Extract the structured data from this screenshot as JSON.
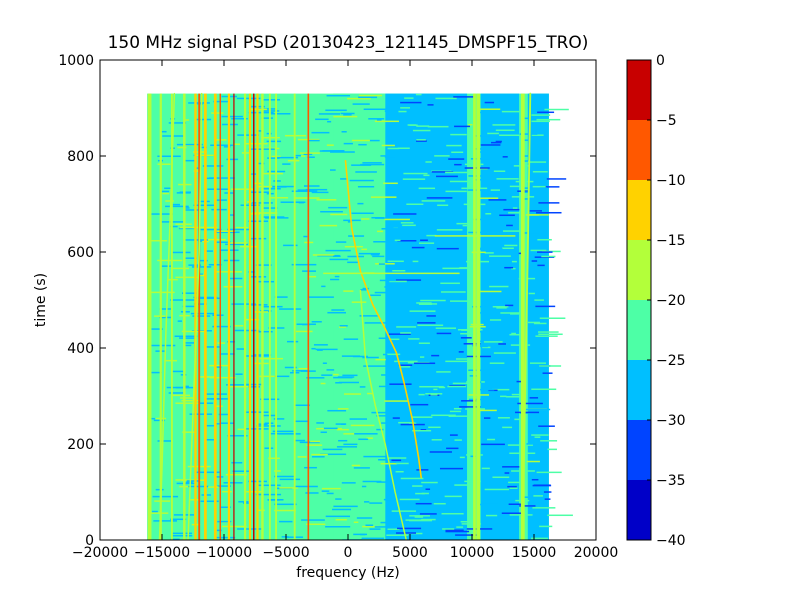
{
  "chart_data": {
    "type": "heatmap",
    "title": "150 MHz signal PSD (20130423_121145_DMSPF15_TRO)",
    "xlabel": "frequency (Hz)",
    "ylabel": "time (s)",
    "xlim": [
      -20000,
      20000
    ],
    "ylim": [
      0,
      1000
    ],
    "x_ticks": [
      -20000,
      -15000,
      -10000,
      -5000,
      0,
      5000,
      10000,
      15000,
      20000
    ],
    "y_ticks": [
      0,
      200,
      400,
      600,
      800,
      1000
    ],
    "data_extent": {
      "freq_min_hz": -16200,
      "freq_max_hz": 16200,
      "time_min_s": 0,
      "time_max_s": 930
    },
    "background_level_db": -22.5,
    "colorbar": {
      "levels": [
        -40,
        -35,
        -30,
        -25,
        -20,
        -15,
        -10,
        -5,
        0
      ],
      "colors": [
        "#0000c8",
        "#0044ff",
        "#00bfff",
        "#4dffa6",
        "#b3ff3a",
        "#ffd200",
        "#ff5800",
        "#c80000"
      ]
    },
    "regions": [
      {
        "f_min_hz": 3000,
        "f_max_hz": 9600,
        "t_min_s": 0,
        "t_max_s": 930,
        "level_db": -27.5
      },
      {
        "f_min_hz": 10700,
        "f_max_hz": 13800,
        "t_min_s": 0,
        "t_max_s": 930,
        "level_db": -27.5
      },
      {
        "f_min_hz": 14500,
        "f_max_hz": 16200,
        "t_min_s": 0,
        "t_max_s": 930,
        "level_db": -27.5
      },
      {
        "f_min_hz": -1200,
        "f_max_hz": 3000,
        "t_min_s": 0,
        "t_max_s": 930,
        "level_db": -25
      }
    ],
    "lines": [
      {
        "f_hz": -7600,
        "level_db": -2.5,
        "width_hz": 120
      },
      {
        "f_hz": -7300,
        "level_db": -12.5,
        "width_hz": 180
      },
      {
        "f_hz": -7900,
        "level_db": -12.5,
        "width_hz": 180
      },
      {
        "f_hz": -8300,
        "level_db": -17.5,
        "width_hz": 180
      },
      {
        "f_hz": -6900,
        "level_db": -17.5,
        "width_hz": 200
      },
      {
        "f_hz": -9200,
        "level_db": -2.5,
        "width_hz": 100
      },
      {
        "f_hz": -9600,
        "level_db": -12.5,
        "width_hz": 180
      },
      {
        "f_hz": -10300,
        "level_db": -7.5,
        "width_hz": 120
      },
      {
        "f_hz": -10700,
        "level_db": -12.5,
        "width_hz": 220
      },
      {
        "f_hz": -11500,
        "level_db": -12.5,
        "width_hz": 220
      },
      {
        "f_hz": -12000,
        "level_db": -7.5,
        "width_hz": 150
      },
      {
        "f_hz": -12300,
        "level_db": -12.5,
        "width_hz": 200
      },
      {
        "f_hz": -13200,
        "level_db": -17.5,
        "width_hz": 200
      },
      {
        "f_hz": -14200,
        "level_db": -17.5,
        "width_hz": 150
      },
      {
        "f_hz": -15100,
        "level_db": -17.5,
        "width_hz": 180
      },
      {
        "f_hz": -3200,
        "level_db": -7.5,
        "width_hz": 130
      },
      {
        "f_hz": -4300,
        "level_db": -17.5,
        "width_hz": 150
      },
      {
        "f_hz": -5800,
        "level_db": -17.5,
        "width_hz": 150
      },
      {
        "f_hz": -6300,
        "level_db": -17.5,
        "width_hz": 150
      },
      {
        "f_hz": 10200,
        "level_db": -17.5,
        "width_hz": 220
      },
      {
        "f_hz": 10500,
        "level_db": -20,
        "width_hz": 300
      },
      {
        "f_hz": 14100,
        "level_db": -20,
        "width_hz": 300
      },
      {
        "f_hz": -16000,
        "level_db": -20,
        "width_hz": 300
      }
    ],
    "curves": [
      {
        "level_db": -12.5,
        "width_hz": 130,
        "points": [
          [
            -200,
            790
          ],
          [
            300,
            650
          ],
          [
            1000,
            560
          ],
          [
            2000,
            490
          ],
          [
            3000,
            440
          ],
          [
            3900,
            390
          ],
          [
            4500,
            330
          ],
          [
            5200,
            250
          ],
          [
            5700,
            170
          ],
          [
            5900,
            130
          ]
        ]
      },
      {
        "level_db": -17.5,
        "width_hz": 120,
        "points": [
          [
            1000,
            520
          ],
          [
            1400,
            380
          ],
          [
            2200,
            280
          ],
          [
            3000,
            200
          ],
          [
            3800,
            100
          ],
          [
            4700,
            0
          ]
        ]
      },
      {
        "level_db": -17.5,
        "width_hz": 120,
        "points": [
          [
            -15200,
            0
          ],
          [
            -15000,
            150
          ],
          [
            -14700,
            420
          ],
          [
            -14300,
            700
          ],
          [
            -14000,
            930
          ]
        ]
      },
      {
        "level_db": -17.5,
        "width_hz": 120,
        "points": [
          [
            -12900,
            0
          ],
          [
            -12600,
            200
          ],
          [
            -12200,
            460
          ],
          [
            -12000,
            600
          ],
          [
            -11800,
            930
          ]
        ]
      },
      {
        "level_db": -20,
        "width_hz": 150,
        "points": [
          [
            14100,
            0
          ],
          [
            14200,
            200
          ],
          [
            14500,
            600
          ],
          [
            14700,
            930
          ]
        ]
      }
    ],
    "horizontal_features": [
      {
        "t_s": 633,
        "f_min_hz": 7000,
        "f_max_hz": 13500,
        "level_db": -20
      },
      {
        "t_s": 555,
        "f_min_hz": -2000,
        "f_max_hz": 9000,
        "level_db": -20
      }
    ]
  }
}
